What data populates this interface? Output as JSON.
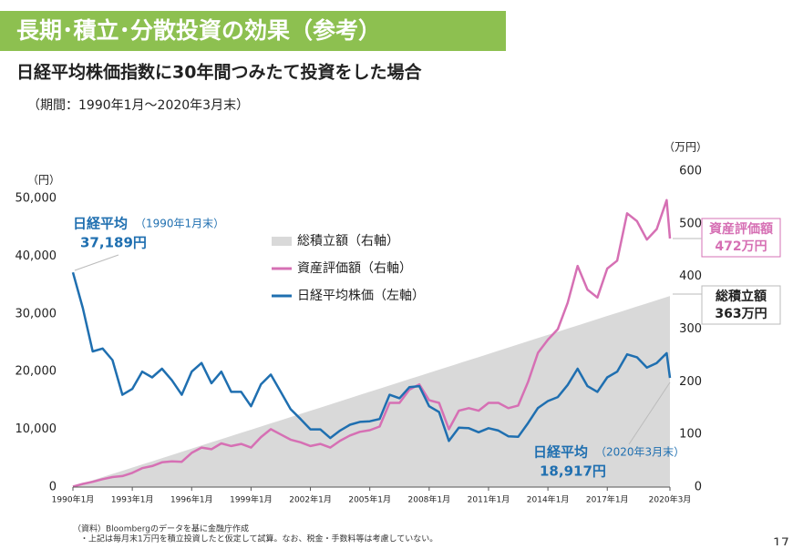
{
  "header": {
    "title": "長期･積立･分散投資の効果（参考）",
    "subtitle": "日経平均株価指数に30年間つみたて投資をした場合",
    "period": "（期間：1990年1月～2020年3月末）"
  },
  "chart_data": {
    "type": "line",
    "y_unit_label": "（円）",
    "y2_unit_label": "（万円）",
    "x": [
      "1990-01",
      "1990-07",
      "1991-01",
      "1991-07",
      "1992-01",
      "1992-07",
      "1993-01",
      "1993-07",
      "1994-01",
      "1994-07",
      "1995-01",
      "1995-07",
      "1996-01",
      "1996-07",
      "1997-01",
      "1997-07",
      "1998-01",
      "1998-07",
      "1999-01",
      "1999-07",
      "2000-01",
      "2000-07",
      "2001-01",
      "2001-07",
      "2002-01",
      "2002-07",
      "2003-01",
      "2003-07",
      "2004-01",
      "2004-07",
      "2005-01",
      "2005-07",
      "2006-01",
      "2006-07",
      "2007-01",
      "2007-07",
      "2008-01",
      "2008-07",
      "2009-01",
      "2009-07",
      "2010-01",
      "2010-07",
      "2011-01",
      "2011-07",
      "2012-01",
      "2012-07",
      "2013-01",
      "2013-07",
      "2014-01",
      "2014-07",
      "2015-01",
      "2015-07",
      "2016-01",
      "2016-07",
      "2017-01",
      "2017-07",
      "2018-01",
      "2018-07",
      "2019-01",
      "2019-07",
      "2020-01",
      "2020-03"
    ],
    "xlim": [
      "1990-01",
      "2020-03"
    ],
    "xticks": [
      {
        "value": "1990-01",
        "label": "1990年1月"
      },
      {
        "value": "1993-01",
        "label": "1993年1月"
      },
      {
        "value": "1996-01",
        "label": "1996年1月"
      },
      {
        "value": "1999-01",
        "label": "1999年1月"
      },
      {
        "value": "2002-01",
        "label": "2002年1月"
      },
      {
        "value": "2005-01",
        "label": "2005年1月"
      },
      {
        "value": "2008-01",
        "label": "2008年1月"
      },
      {
        "value": "2011-01",
        "label": "2011年1月"
      },
      {
        "value": "2014-01",
        "label": "2014年1月"
      },
      {
        "value": "2017-01",
        "label": "2017年1月"
      },
      {
        "value": "2020-03",
        "label": "2020年3月"
      }
    ],
    "ylim": [
      0,
      50000
    ],
    "yticks": [
      0,
      {
        "value": 10000,
        "label": "10,000"
      },
      {
        "value": 20000,
        "label": "20,000"
      },
      {
        "value": 30000,
        "label": "30,000"
      },
      {
        "value": 40000,
        "label": "40,000"
      },
      {
        "value": 50000,
        "label": "50,000"
      }
    ],
    "y2lim": [
      0,
      600
    ],
    "y2ticks": [
      0,
      100,
      200,
      300,
      400,
      500,
      600
    ],
    "series": [
      {
        "name": "総積立額（右軸）",
        "color": "#d9d9d9",
        "kind": "area",
        "axis": "y2",
        "values": [
          1,
          7,
          13,
          19,
          25,
          31,
          37,
          43,
          49,
          55,
          61,
          67,
          73,
          79,
          85,
          91,
          97,
          103,
          109,
          115,
          121,
          127,
          133,
          139,
          145,
          151,
          157,
          163,
          169,
          175,
          181,
          187,
          193,
          199,
          205,
          211,
          217,
          223,
          229,
          235,
          241,
          247,
          253,
          259,
          265,
          271,
          277,
          283,
          289,
          295,
          301,
          307,
          313,
          319,
          325,
          331,
          337,
          343,
          349,
          355,
          361,
          363
        ]
      },
      {
        "name": "資産評価額（右軸）",
        "color": "#d670b4",
        "kind": "line",
        "axis": "y2",
        "values": [
          1,
          6,
          10,
          15,
          19,
          21,
          27,
          36,
          40,
          47,
          49,
          48,
          65,
          75,
          72,
          83,
          78,
          82,
          75,
          95,
          110,
          100,
          90,
          85,
          78,
          82,
          75,
          88,
          98,
          105,
          108,
          115,
          160,
          160,
          185,
          195,
          165,
          160,
          110,
          145,
          150,
          145,
          160,
          160,
          150,
          155,
          200,
          255,
          280,
          300,
          350,
          420,
          375,
          360,
          415,
          430,
          520,
          505,
          470,
          490,
          545,
          472
        ]
      },
      {
        "name": "日経平均株価（左軸）",
        "color": "#1f6fb0",
        "kind": "line",
        "axis": "y",
        "values": [
          37189,
          31000,
          23500,
          24000,
          22000,
          16000,
          17000,
          20000,
          19000,
          20500,
          18500,
          16000,
          20000,
          21500,
          18000,
          20000,
          16500,
          16500,
          14000,
          17800,
          19500,
          16500,
          13500,
          11800,
          10000,
          10000,
          8500,
          9800,
          10800,
          11300,
          11400,
          11800,
          16000,
          15400,
          17300,
          17500,
          14000,
          13000,
          8000,
          10300,
          10200,
          9500,
          10200,
          9800,
          8800,
          8700,
          11100,
          13700,
          14900,
          15600,
          17700,
          20500,
          17500,
          16500,
          19000,
          20000,
          23000,
          22500,
          20700,
          21500,
          23200,
          18917
        ]
      }
    ],
    "annotations": {
      "start_name": "日経平均",
      "start_date": "（1990年1月末）",
      "start_value": "37,189円",
      "end_name": "日経平均",
      "end_date": "（2020年3月末）",
      "end_value": "18,917円",
      "asset_name": "資産評価額",
      "asset_value": "472万円",
      "total_name": "総積立額",
      "total_value": "363万円"
    }
  },
  "footer": {
    "source": "（資料）Bloombergのデータを基に金融庁作成",
    "note": "・上記は毎月末1万円を積立投資したと仮定して試算。なお、税金・手数料等は考慮していない。",
    "page": "17"
  }
}
